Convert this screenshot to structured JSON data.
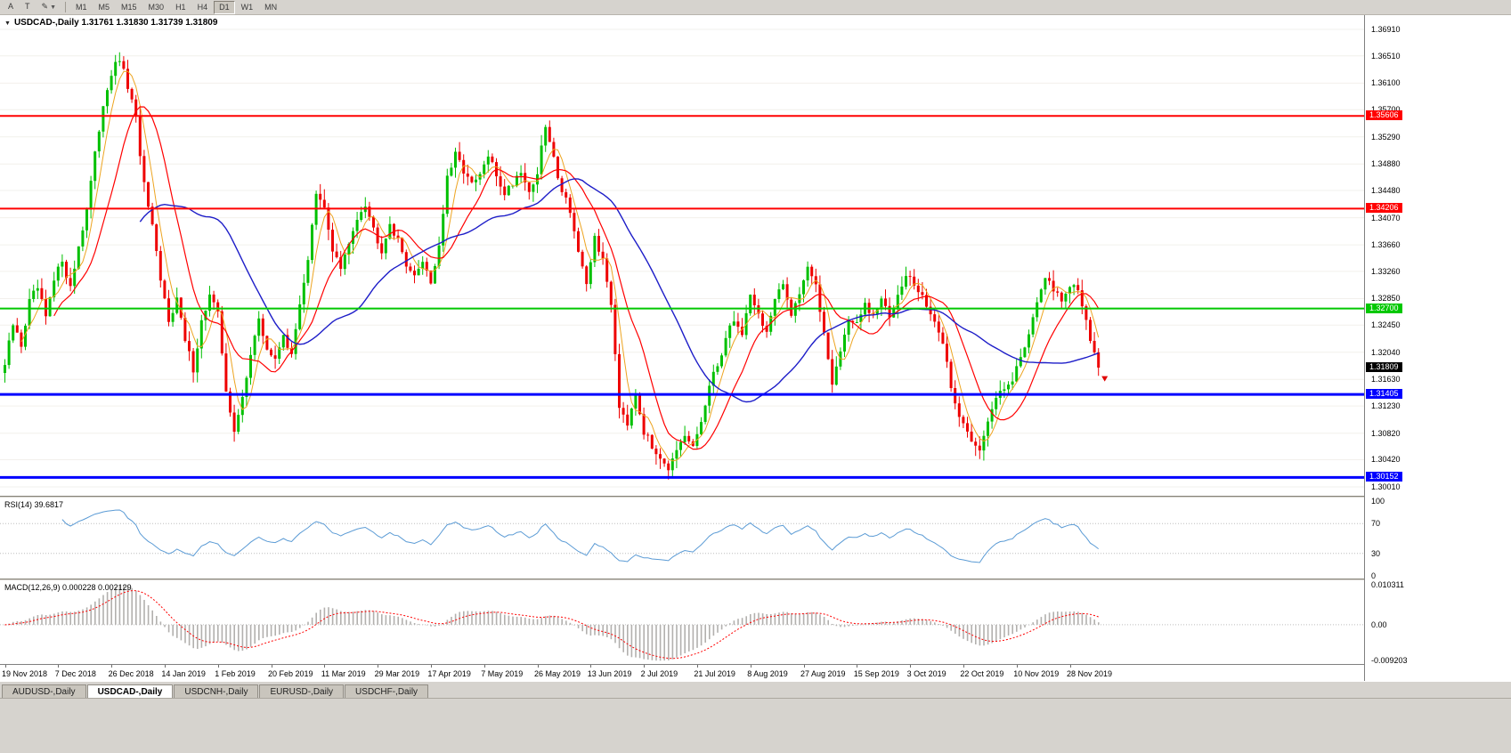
{
  "toolbar": {
    "tools": [
      {
        "id": "cursor-tool",
        "label": "A"
      },
      {
        "id": "text-tool",
        "label": "T"
      },
      {
        "id": "drawing-tools",
        "label": "✎"
      }
    ],
    "timeframes": [
      "M1",
      "M5",
      "M15",
      "M30",
      "H1",
      "H4",
      "D1",
      "W1",
      "MN"
    ],
    "active_timeframe": "D1"
  },
  "chart": {
    "title": "USDCAD-,Daily 1.31761 1.31830 1.31739 1.31809",
    "current_price_label": "1.31809",
    "price_axis_labels": [
      "1.36910",
      "1.36510",
      "1.36100",
      "1.35700",
      "1.35290",
      "1.34880",
      "1.34480",
      "1.34070",
      "1.33660",
      "1.33260",
      "1.32850",
      "1.32450",
      "1.32040",
      "1.31630",
      "1.31230",
      "1.30820",
      "1.30420",
      "1.30010"
    ],
    "date_labels": [
      "19 Nov 2018",
      "7 Dec 2018",
      "26 Dec 2018",
      "14 Jan 2019",
      "1 Feb 2019",
      "20 Feb 2019",
      "11 Mar 2019",
      "29 Mar 2019",
      "17 Apr 2019",
      "7 May 2019",
      "26 May 2019",
      "13 Jun 2019",
      "2 Jul 2019",
      "21 Jul 2019",
      "8 Aug 2019",
      "27 Aug 2019",
      "15 Sep 2019",
      "3 Oct 2019",
      "22 Oct 2019",
      "10 Nov 2019",
      "28 Nov 2019"
    ]
  },
  "rsi_panel": {
    "title": "RSI(14) 39.6817",
    "axis_labels": [
      "100",
      "70",
      "30",
      "0"
    ]
  },
  "macd_panel": {
    "title": "MACD(12,26,9) 0.000228 0.002129",
    "axis_labels": [
      "0.010311",
      "0.00",
      "-0.009203"
    ]
  },
  "tabs": [
    {
      "label": "AUDUSD-,Daily",
      "active": false
    },
    {
      "label": "USDCAD-,Daily",
      "active": true
    },
    {
      "label": "USDCNH-,Daily",
      "active": false
    },
    {
      "label": "EURUSD-,Daily",
      "active": false
    },
    {
      "label": "USDCHF-,Daily",
      "active": false
    }
  ],
  "colors": {
    "bull": "#00c000",
    "bear": "#ee0000",
    "ma_fast": "#eda420",
    "ma_mid": "#ff0000",
    "ma_slow": "#1d1dc8",
    "rsi_line": "#5b9bd5",
    "macd_hist": "#b2b0ae",
    "macd_signal": "#ff0000",
    "grid": "#f2f0ec",
    "level_dotted": "#bdbdbd",
    "price_marker_bg": "#000000"
  },
  "chart_data": {
    "type": "candlestick",
    "symbol": "USDCAD",
    "timeframe": "Daily",
    "current_ohlc": {
      "open": 1.31761,
      "high": 1.3183,
      "low": 1.31739,
      "close": 1.31809
    },
    "y_range": [
      1.29876,
      1.37125
    ],
    "candle_count": 268,
    "x_date_labels_every_n_candles": 13,
    "horizontal_lines": [
      {
        "price": 1.35606,
        "label": "1.35606",
        "color": "#ff0000",
        "width": 2
      },
      {
        "price": 1.34206,
        "label": "1.34206",
        "color": "#ff0000",
        "width": 2
      },
      {
        "price": 1.327,
        "label": "1.32700",
        "color": "#00c800",
        "width": 2
      },
      {
        "price": 1.31405,
        "label": "1.31405",
        "color": "#0000ff",
        "width": 3
      },
      {
        "price": 1.30152,
        "label": "1.30152",
        "color": "#0000ff",
        "width": 3
      }
    ],
    "moving_averages": [
      {
        "period": 5,
        "color": "#eda420"
      },
      {
        "period": 13,
        "color": "#ff0000"
      },
      {
        "period": 34,
        "color": "#1d1dc8"
      }
    ],
    "indicators": [
      {
        "name": "RSI",
        "period": 14,
        "value": 39.6817,
        "range": [
          0,
          100
        ],
        "levels": [
          30,
          70
        ]
      },
      {
        "name": "MACD",
        "fast": 12,
        "slow": 26,
        "signal": 9,
        "value": 0.000228,
        "signal_value": 0.002129,
        "axis_max": 0.010311,
        "axis_min": -0.009203
      }
    ],
    "price_path_anchors": [
      [
        0,
        1.3185
      ],
      [
        2,
        1.3245
      ],
      [
        4,
        1.3215
      ],
      [
        6,
        1.328
      ],
      [
        8,
        1.33
      ],
      [
        10,
        1.3255
      ],
      [
        12,
        1.331
      ],
      [
        14,
        1.3345
      ],
      [
        16,
        1.33
      ],
      [
        18,
        1.3365
      ],
      [
        20,
        1.342
      ],
      [
        22,
        1.35
      ],
      [
        24,
        1.358
      ],
      [
        26,
        1.3625
      ],
      [
        28,
        1.3645
      ],
      [
        30,
        1.3605
      ],
      [
        32,
        1.3555
      ],
      [
        34,
        1.3455
      ],
      [
        36,
        1.339
      ],
      [
        38,
        1.331
      ],
      [
        40,
        1.3255
      ],
      [
        42,
        1.3285
      ],
      [
        44,
        1.322
      ],
      [
        46,
        1.318
      ],
      [
        48,
        1.325
      ],
      [
        50,
        1.329
      ],
      [
        52,
        1.326
      ],
      [
        54,
        1.315
      ],
      [
        56,
        1.308
      ],
      [
        58,
        1.3135
      ],
      [
        60,
        1.3205
      ],
      [
        62,
        1.325
      ],
      [
        64,
        1.321
      ],
      [
        66,
        1.319
      ],
      [
        68,
        1.3235
      ],
      [
        70,
        1.3195
      ],
      [
        72,
        1.328
      ],
      [
        74,
        1.3345
      ],
      [
        76,
        1.344
      ],
      [
        78,
        1.342
      ],
      [
        80,
        1.336
      ],
      [
        82,
        1.333
      ],
      [
        84,
        1.3365
      ],
      [
        86,
        1.341
      ],
      [
        88,
        1.343
      ],
      [
        90,
        1.339
      ],
      [
        92,
        1.336
      ],
      [
        94,
        1.34
      ],
      [
        96,
        1.337
      ],
      [
        98,
        1.334
      ],
      [
        100,
        1.3315
      ],
      [
        102,
        1.3345
      ],
      [
        104,
        1.331
      ],
      [
        106,
        1.3365
      ],
      [
        108,
        1.3465
      ],
      [
        110,
        1.35
      ],
      [
        112,
        1.348
      ],
      [
        114,
        1.3455
      ],
      [
        116,
        1.347
      ],
      [
        118,
        1.35
      ],
      [
        120,
        1.347
      ],
      [
        122,
        1.3445
      ],
      [
        124,
        1.346
      ],
      [
        126,
        1.348
      ],
      [
        128,
        1.3445
      ],
      [
        130,
        1.3475
      ],
      [
        132,
        1.3545
      ],
      [
        134,
        1.3495
      ],
      [
        136,
        1.345
      ],
      [
        138,
        1.342
      ],
      [
        140,
        1.3355
      ],
      [
        142,
        1.33
      ],
      [
        144,
        1.338
      ],
      [
        146,
        1.334
      ],
      [
        148,
        1.328
      ],
      [
        150,
        1.3125
      ],
      [
        152,
        1.31
      ],
      [
        154,
        1.3145
      ],
      [
        156,
        1.3085
      ],
      [
        158,
        1.306
      ],
      [
        160,
        1.305
      ],
      [
        162,
        1.303
      ],
      [
        164,
        1.305
      ],
      [
        166,
        1.3075
      ],
      [
        168,
        1.306
      ],
      [
        170,
        1.31
      ],
      [
        172,
        1.315
      ],
      [
        174,
        1.3185
      ],
      [
        176,
        1.3225
      ],
      [
        178,
        1.3255
      ],
      [
        180,
        1.323
      ],
      [
        182,
        1.3295
      ],
      [
        184,
        1.326
      ],
      [
        186,
        1.3235
      ],
      [
        188,
        1.328
      ],
      [
        190,
        1.3305
      ],
      [
        192,
        1.3265
      ],
      [
        194,
        1.3295
      ],
      [
        196,
        1.3335
      ],
      [
        198,
        1.33
      ],
      [
        200,
        1.3235
      ],
      [
        202,
        1.316
      ],
      [
        204,
        1.3205
      ],
      [
        206,
        1.3255
      ],
      [
        208,
        1.3245
      ],
      [
        210,
        1.3275
      ],
      [
        212,
        1.3255
      ],
      [
        214,
        1.3285
      ],
      [
        216,
        1.3255
      ],
      [
        218,
        1.3295
      ],
      [
        220,
        1.3325
      ],
      [
        222,
        1.3305
      ],
      [
        224,
        1.3285
      ],
      [
        226,
        1.3265
      ],
      [
        228,
        1.3235
      ],
      [
        230,
        1.3185
      ],
      [
        232,
        1.3125
      ],
      [
        234,
        1.3095
      ],
      [
        236,
        1.3075
      ],
      [
        238,
        1.306
      ],
      [
        240,
        1.3095
      ],
      [
        242,
        1.3135
      ],
      [
        244,
        1.3155
      ],
      [
        246,
        1.3165
      ],
      [
        248,
        1.3195
      ],
      [
        250,
        1.3235
      ],
      [
        252,
        1.3285
      ],
      [
        254,
        1.331
      ],
      [
        256,
        1.33
      ],
      [
        258,
        1.3285
      ],
      [
        260,
        1.3305
      ],
      [
        262,
        1.3295
      ],
      [
        264,
        1.3255
      ],
      [
        266,
        1.32
      ],
      [
        267,
        1.3181
      ]
    ]
  }
}
